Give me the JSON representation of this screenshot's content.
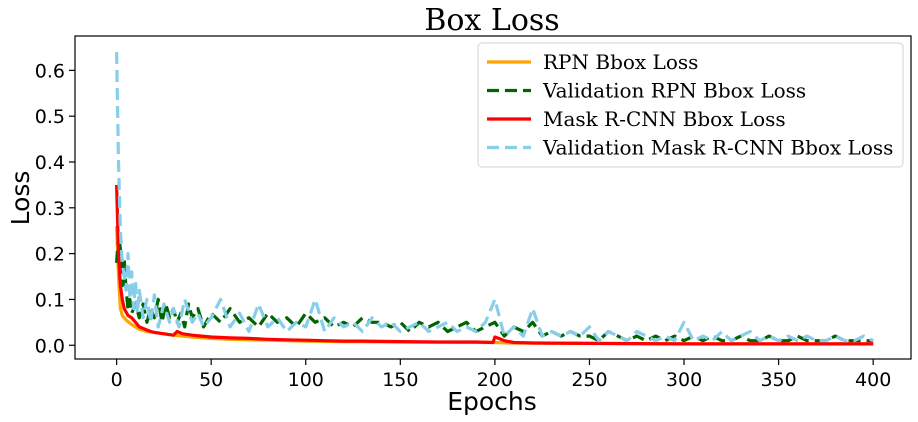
{
  "chart_data": {
    "type": "line",
    "title": "Box Loss",
    "xlabel": "Epochs",
    "ylabel": "Loss",
    "xlim": [
      -22,
      420
    ],
    "ylim": [
      -0.03,
      0.675
    ],
    "xticks": [
      0,
      50,
      100,
      150,
      200,
      250,
      300,
      350,
      400
    ],
    "yticks": [
      0.0,
      0.1,
      0.2,
      0.3,
      0.4,
      0.5,
      0.6
    ],
    "ytick_labels": [
      "0.0",
      "0.1",
      "0.2",
      "0.3",
      "0.4",
      "0.5",
      "0.6"
    ],
    "grid": false,
    "legend_position": "top-right",
    "series": [
      {
        "name": "RPN Bbox Loss",
        "color": "#FFA500",
        "style": "solid",
        "x": [
          0,
          1,
          2,
          3,
          5,
          8,
          12,
          16,
          20,
          25,
          30,
          35,
          40,
          50,
          60,
          70,
          80,
          100,
          120,
          150,
          200,
          210,
          250,
          300,
          350,
          400
        ],
        "y": [
          0.26,
          0.15,
          0.08,
          0.065,
          0.055,
          0.045,
          0.035,
          0.03,
          0.028,
          0.025,
          0.022,
          0.02,
          0.018,
          0.015,
          0.013,
          0.012,
          0.011,
          0.009,
          0.008,
          0.007,
          0.006,
          0.005,
          0.004,
          0.003,
          0.003,
          0.003
        ]
      },
      {
        "name": "Validation RPN Bbox Loss",
        "color": "#006400",
        "style": "dashed",
        "x": [
          0,
          1,
          2,
          3,
          4,
          5,
          6,
          7,
          8,
          10,
          12,
          14,
          16,
          18,
          20,
          22,
          24,
          26,
          28,
          30,
          32,
          34,
          36,
          38,
          40,
          43,
          46,
          50,
          55,
          60,
          65,
          70,
          75,
          80,
          85,
          90,
          95,
          100,
          105,
          110,
          115,
          120,
          125,
          130,
          135,
          140,
          145,
          150,
          155,
          160,
          165,
          170,
          175,
          180,
          185,
          190,
          195,
          200,
          205,
          210,
          215,
          220,
          225,
          230,
          235,
          240,
          245,
          250,
          255,
          260,
          265,
          270,
          275,
          280,
          285,
          290,
          295,
          300,
          305,
          310,
          315,
          320,
          325,
          330,
          335,
          340,
          345,
          350,
          355,
          360,
          365,
          370,
          375,
          380,
          385,
          390,
          395,
          400
        ],
        "y": [
          0.18,
          0.24,
          0.21,
          0.13,
          0.19,
          0.12,
          0.08,
          0.1,
          0.07,
          0.09,
          0.06,
          0.09,
          0.05,
          0.08,
          0.06,
          0.1,
          0.05,
          0.09,
          0.06,
          0.08,
          0.05,
          0.07,
          0.04,
          0.09,
          0.06,
          0.08,
          0.04,
          0.07,
          0.05,
          0.08,
          0.05,
          0.06,
          0.04,
          0.07,
          0.05,
          0.06,
          0.04,
          0.07,
          0.05,
          0.06,
          0.04,
          0.05,
          0.04,
          0.06,
          0.05,
          0.05,
          0.04,
          0.05,
          0.03,
          0.05,
          0.04,
          0.05,
          0.03,
          0.04,
          0.05,
          0.03,
          0.04,
          0.05,
          0.02,
          0.04,
          0.03,
          0.05,
          0.02,
          0.03,
          0.02,
          0.03,
          0.02,
          0.02,
          0.01,
          0.03,
          0.02,
          0.01,
          0.02,
          0.01,
          0.02,
          0.01,
          0.02,
          0.01,
          0.02,
          0.01,
          0.02,
          0.01,
          0.01,
          0.02,
          0.01,
          0.01,
          0.02,
          0.01,
          0.01,
          0.02,
          0.01,
          0.01,
          0.01,
          0.02,
          0.01,
          0.01,
          0.01,
          0.01
        ]
      },
      {
        "name": "Mask R-CNN Bbox Loss",
        "color": "#FF0000",
        "style": "solid",
        "x": [
          0,
          1,
          2,
          3,
          4,
          6,
          8,
          10,
          12,
          15,
          18,
          20,
          25,
          30,
          32,
          35,
          40,
          45,
          50,
          60,
          70,
          80,
          90,
          100,
          110,
          120,
          130,
          150,
          170,
          190,
          199,
          200,
          202,
          205,
          210,
          220,
          250,
          300,
          350,
          400
        ],
        "y": [
          0.35,
          0.2,
          0.13,
          0.1,
          0.08,
          0.065,
          0.06,
          0.05,
          0.04,
          0.035,
          0.03,
          0.028,
          0.025,
          0.022,
          0.03,
          0.025,
          0.022,
          0.02,
          0.018,
          0.016,
          0.015,
          0.013,
          0.012,
          0.011,
          0.01,
          0.009,
          0.009,
          0.008,
          0.007,
          0.007,
          0.006,
          0.018,
          0.015,
          0.01,
          0.006,
          0.005,
          0.004,
          0.003,
          0.003,
          0.003
        ]
      },
      {
        "name": "Validation Mask R-CNN Bbox Loss",
        "color": "#87CEEB",
        "style": "dashed",
        "x": [
          0,
          1,
          2,
          3,
          4,
          5,
          6,
          7,
          8,
          9,
          10,
          11,
          12,
          14,
          16,
          18,
          20,
          22,
          25,
          28,
          30,
          33,
          36,
          40,
          43,
          46,
          50,
          55,
          60,
          65,
          70,
          75,
          80,
          85,
          90,
          95,
          100,
          105,
          110,
          115,
          120,
          125,
          130,
          135,
          140,
          145,
          150,
          155,
          160,
          165,
          170,
          175,
          180,
          185,
          190,
          195,
          200,
          205,
          210,
          215,
          220,
          225,
          230,
          235,
          240,
          245,
          250,
          255,
          260,
          265,
          270,
          275,
          280,
          285,
          290,
          295,
          300,
          305,
          310,
          315,
          320,
          325,
          330,
          335,
          340,
          345,
          350,
          355,
          360,
          365,
          370,
          375,
          380,
          385,
          390,
          395,
          400
        ],
        "y": [
          0.64,
          0.4,
          0.25,
          0.18,
          0.15,
          0.12,
          0.2,
          0.1,
          0.16,
          0.08,
          0.14,
          0.07,
          0.12,
          0.06,
          0.1,
          0.05,
          0.11,
          0.04,
          0.09,
          0.05,
          0.08,
          0.04,
          0.1,
          0.05,
          0.07,
          0.04,
          0.06,
          0.1,
          0.04,
          0.07,
          0.03,
          0.09,
          0.04,
          0.06,
          0.03,
          0.05,
          0.04,
          0.1,
          0.03,
          0.06,
          0.04,
          0.05,
          0.03,
          0.06,
          0.04,
          0.05,
          0.03,
          0.04,
          0.05,
          0.03,
          0.04,
          0.05,
          0.03,
          0.04,
          0.03,
          0.05,
          0.1,
          0.02,
          0.04,
          0.02,
          0.08,
          0.02,
          0.03,
          0.02,
          0.03,
          0.02,
          0.04,
          0.01,
          0.03,
          0.02,
          0.01,
          0.03,
          0.02,
          0.01,
          0.02,
          0.01,
          0.05,
          0.01,
          0.02,
          0.01,
          0.03,
          0.01,
          0.02,
          0.03,
          0.01,
          0.02,
          0.01,
          0.02,
          0.01,
          0.02,
          0.01,
          0.01,
          0.02,
          0.01,
          0.01,
          0.02,
          0.01
        ]
      }
    ]
  }
}
